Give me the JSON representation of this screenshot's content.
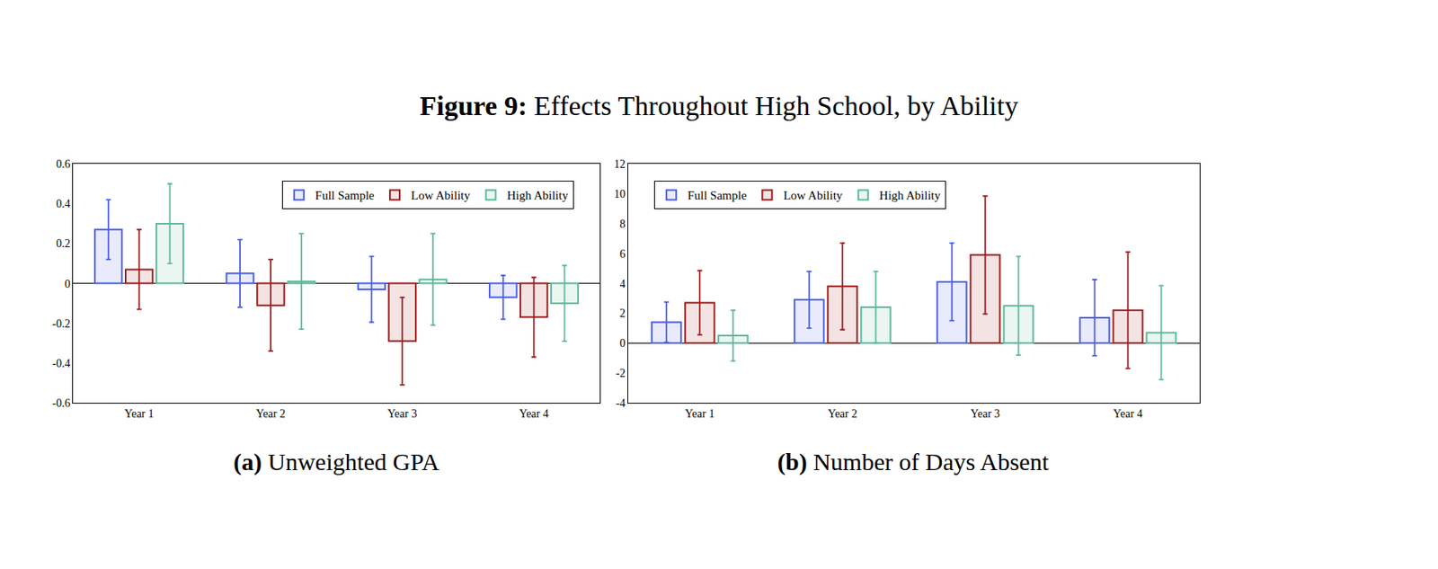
{
  "title": "Figure 9: Effects Throughout High School, by Ability",
  "chart_data": [
    {
      "type": "bar",
      "title": "(a) Unweighted GPA",
      "categories": [
        "Year 1",
        "Year 2",
        "Year 3",
        "Year 4"
      ],
      "series": [
        {
          "name": "Full Sample",
          "color": "#4a5de8",
          "values": [
            0.27,
            0.05,
            -0.03,
            -0.07
          ],
          "errors": [
            0.15,
            0.17,
            0.165,
            0.11
          ]
        },
        {
          "name": "Low Ability",
          "color": "#9b1c1c",
          "values": [
            0.07,
            -0.11,
            -0.29,
            -0.17
          ],
          "errors": [
            0.2,
            0.23,
            0.22,
            0.2
          ]
        },
        {
          "name": "High Ability",
          "color": "#5ab89a",
          "values": [
            0.3,
            0.01,
            0.02,
            -0.1
          ],
          "errors": [
            0.2,
            0.24,
            0.23,
            0.19
          ]
        }
      ],
      "ylim": [
        -0.6,
        0.6
      ],
      "yticks": [
        -0.6,
        -0.4,
        -0.2,
        0,
        0.2,
        0.4,
        0.6
      ],
      "grid": false,
      "legend": "upper right"
    },
    {
      "type": "bar",
      "title": "(b) Number of Days Absent",
      "categories": [
        "Year 1",
        "Year 2",
        "Year 3",
        "Year 4"
      ],
      "series": [
        {
          "name": "Full Sample",
          "color": "#4a5de8",
          "values": [
            1.4,
            2.9,
            4.1,
            1.7
          ],
          "errors": [
            1.35,
            1.9,
            2.6,
            2.55
          ]
        },
        {
          "name": "Low Ability",
          "color": "#9b1c1c",
          "values": [
            2.7,
            3.8,
            5.9,
            2.2
          ],
          "errors": [
            2.15,
            2.9,
            3.95,
            3.9
          ]
        },
        {
          "name": "High Ability",
          "color": "#5ab89a",
          "values": [
            0.5,
            2.4,
            2.5,
            0.7
          ],
          "errors": [
            1.7,
            2.4,
            3.3,
            3.15
          ]
        }
      ],
      "ylim": [
        -4,
        12
      ],
      "yticks": [
        -4,
        -2,
        0,
        2,
        4,
        6,
        8,
        10,
        12
      ],
      "grid": false,
      "legend": "upper left"
    }
  ]
}
